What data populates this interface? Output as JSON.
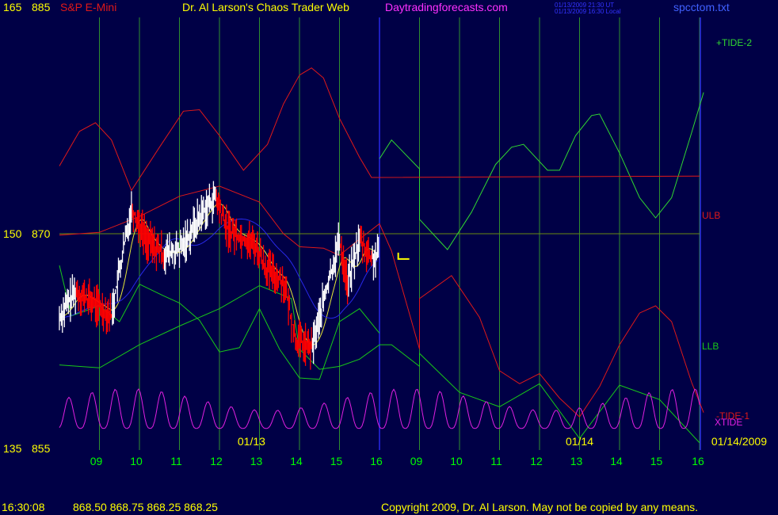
{
  "header": {
    "price_scale_top_a": "165",
    "price_scale_top_b": "885",
    "symbol": "S&P E-Mini",
    "title": "Dr. Al Larson's Chaos Trader Web",
    "site": "Daytradingforecasts.com",
    "stamp_ut": "01/13/2009 21:30 UT",
    "stamp_local": "01/13/2009 16:30 Local",
    "file": "spcctom.txt"
  },
  "footer": {
    "time": "16:30:08",
    "quote": "868.50 868.75 868.25 868.25",
    "copyright": "Copyright 2009, Dr. Al Larson. May not be copied by any means."
  },
  "colors": {
    "background": "#000046",
    "grid": "#2f8f2f",
    "price_up": "#ffffff",
    "price_down": "#ff0000",
    "ulb": "#e01818",
    "llb": "#18c818",
    "tide": "#30d830",
    "xtide": "#e020e0",
    "avg_blue": "#2828e8",
    "avg_yellow": "#e8e838",
    "label_yellow": "#ffff00",
    "label_green": "#00ff00"
  },
  "chart_data": {
    "type": "line",
    "title": "S&P E-Mini",
    "y_axis": {
      "price_range": [
        855,
        885
      ],
      "ticks": [
        {
          "left": "165",
          "right": "885",
          "value": 885
        },
        {
          "left": "150",
          "right": "870",
          "value": 870
        },
        {
          "left": "135",
          "right": "855",
          "value": 855
        }
      ],
      "reference_line": 870
    },
    "x_axis": {
      "unit": "hour",
      "hours": [
        8,
        17
      ],
      "days": [
        {
          "date": "01/13",
          "ticks": [
            "09",
            "10",
            "11",
            "12",
            "13",
            "14",
            "15",
            "16"
          ]
        },
        {
          "date": "01/14",
          "ticks": [
            "09",
            "10",
            "11",
            "12",
            "13",
            "14",
            "15",
            "16"
          ]
        }
      ],
      "end_label": "01/14/2009"
    },
    "day_separator": {
      "day": 1,
      "hour": 16
    },
    "series_labels": [
      "+TIDE-2",
      "ULB",
      "LLB",
      "-TIDE-1",
      "XTIDE"
    ],
    "series": [
      {
        "name": "+TIDE-2",
        "points": [
          [
            1,
            16,
            875.2
          ],
          [
            1,
            16.3,
            876.5
          ],
          [
            1,
            17,
            874.5
          ],
          [
            2,
            9,
            871
          ],
          [
            2,
            9.7,
            868.9
          ],
          [
            2,
            10.3,
            871.5
          ],
          [
            2,
            10.9,
            874.8
          ],
          [
            2,
            11.3,
            876
          ],
          [
            2,
            11.6,
            876.2
          ],
          [
            2,
            12.2,
            874.4
          ],
          [
            2,
            12.5,
            874.4
          ],
          [
            2,
            12.9,
            876.8
          ],
          [
            2,
            13.3,
            878.2
          ],
          [
            2,
            13.5,
            878.3
          ],
          [
            2,
            14,
            875.6
          ],
          [
            2,
            14.5,
            872.5
          ],
          [
            2,
            14.9,
            871.1
          ],
          [
            2,
            15.3,
            872.5
          ],
          [
            2,
            15.8,
            877
          ],
          [
            2,
            16.1,
            879.8
          ]
        ]
      },
      {
        "name": "ULB",
        "points": [
          [
            1,
            8,
            874.7
          ],
          [
            1,
            8.5,
            877.1
          ],
          [
            1,
            8.9,
            877.7
          ],
          [
            1,
            9.3,
            876.5
          ],
          [
            1,
            9.8,
            873
          ],
          [
            1,
            10.5,
            876
          ],
          [
            1,
            11.1,
            878.5
          ],
          [
            1,
            11.5,
            878.6
          ],
          [
            1,
            12,
            876.8
          ],
          [
            1,
            12.6,
            874.4
          ],
          [
            1,
            13.2,
            876.2
          ],
          [
            1,
            13.6,
            879
          ],
          [
            1,
            14,
            881
          ],
          [
            1,
            14.3,
            881.5
          ],
          [
            1,
            14.6,
            880.8
          ],
          [
            1,
            15,
            878
          ],
          [
            1,
            15.5,
            875.3
          ],
          [
            1,
            15.8,
            873.9
          ],
          [
            2,
            16,
            874
          ]
        ]
      },
      {
        "name": "ULB2",
        "points": [
          [
            1,
            8,
            869.9
          ],
          [
            1,
            9,
            870.1
          ],
          [
            1,
            10,
            871.2
          ],
          [
            1,
            11,
            872.6
          ],
          [
            1,
            12,
            873.3
          ],
          [
            1,
            13,
            872.2
          ],
          [
            1,
            13.6,
            870
          ],
          [
            1,
            14,
            869.1
          ],
          [
            1,
            14.6,
            869
          ],
          [
            1,
            15,
            868.5
          ],
          [
            1,
            15.4,
            869.4
          ],
          [
            1,
            16,
            870.7
          ],
          [
            1,
            16.3,
            868.8
          ],
          [
            1,
            17,
            862
          ],
          [
            2,
            9,
            865.5
          ],
          [
            2,
            9.8,
            867.1
          ],
          [
            2,
            10.5,
            864.2
          ],
          [
            2,
            11,
            860.5
          ],
          [
            2,
            11.5,
            859.6
          ],
          [
            2,
            12,
            860.3
          ],
          [
            2,
            12.5,
            858.6
          ],
          [
            2,
            13,
            857.3
          ],
          [
            2,
            13.5,
            859.4
          ],
          [
            2,
            14,
            862.3
          ],
          [
            2,
            14.5,
            864.5
          ],
          [
            2,
            14.9,
            865
          ],
          [
            2,
            15.3,
            863.9
          ],
          [
            2,
            15.8,
            859.7
          ],
          [
            2,
            16.1,
            857.6
          ]
        ]
      },
      {
        "name": "LLB",
        "points": [
          [
            1,
            8,
            860.9
          ],
          [
            1,
            9,
            860.7
          ],
          [
            1,
            10,
            862.3
          ],
          [
            1,
            11,
            863.6
          ],
          [
            1,
            12,
            864.8
          ],
          [
            1,
            13,
            866.4
          ],
          [
            1,
            13.8,
            865.5
          ],
          [
            1,
            14,
            862
          ],
          [
            1,
            14.5,
            860.6
          ],
          [
            1,
            15,
            860.8
          ],
          [
            1,
            15.5,
            861.3
          ],
          [
            1,
            16,
            862.3
          ],
          [
            1,
            16.3,
            862.3
          ],
          [
            1,
            17,
            860.8
          ],
          [
            2,
            9,
            861.7
          ],
          [
            2,
            10,
            859
          ],
          [
            2,
            11,
            858
          ],
          [
            2,
            12,
            859.6
          ],
          [
            2,
            13,
            855.8
          ],
          [
            2,
            14,
            859.5
          ],
          [
            2,
            15,
            858.5
          ],
          [
            2,
            16,
            855.5
          ]
        ]
      },
      {
        "name": "LLB2",
        "points": [
          [
            1,
            8,
            867.8
          ],
          [
            1,
            8.3,
            864.3
          ],
          [
            1,
            9,
            865
          ],
          [
            1,
            9.5,
            863.9
          ],
          [
            1,
            10,
            866.5
          ],
          [
            1,
            10.6,
            865.7
          ],
          [
            1,
            11,
            865.2
          ],
          [
            1,
            11.5,
            864
          ],
          [
            1,
            12,
            861.8
          ],
          [
            1,
            12.5,
            862.1
          ],
          [
            1,
            13,
            864.8
          ],
          [
            1,
            13.5,
            862
          ],
          [
            1,
            14,
            860
          ],
          [
            1,
            14.5,
            859.9
          ],
          [
            1,
            15,
            863.9
          ],
          [
            1,
            15.5,
            864.8
          ],
          [
            1,
            16,
            863.1
          ]
        ]
      },
      {
        "name": "XTIDE",
        "phase": 0.3,
        "amp": 2.5,
        "base": 856.5,
        "period_h": 0.58,
        "range": [
          [
            1,
            8
          ],
          [
            2,
            16
          ]
        ]
      }
    ],
    "price_bars": {
      "series": "S&P E-Mini",
      "range": [
        [
          1,
          8
        ],
        [
          1,
          16
        ]
      ],
      "anchors": [
        [
          1,
          8,
          864.2
        ],
        [
          1,
          8.4,
          866
        ],
        [
          1,
          8.9,
          865.1
        ],
        [
          1,
          9.3,
          864.4
        ],
        [
          1,
          9.8,
          871.8
        ],
        [
          1,
          10.2,
          869.5
        ],
        [
          1,
          10.6,
          868.6
        ],
        [
          1,
          11,
          868.8
        ],
        [
          1,
          11.3,
          870.2
        ],
        [
          1,
          11.6,
          871.6
        ],
        [
          1,
          11.9,
          872.5
        ],
        [
          1,
          12.2,
          870.3
        ],
        [
          1,
          12.6,
          869.7
        ],
        [
          1,
          12.9,
          869.2
        ],
        [
          1,
          13.2,
          867.5
        ],
        [
          1,
          13.6,
          866.7
        ],
        [
          1,
          13.9,
          862.7
        ],
        [
          1,
          14.3,
          862
        ],
        [
          1,
          14.6,
          865.3
        ],
        [
          1,
          15,
          869.6
        ],
        [
          1,
          15.2,
          866.5
        ],
        [
          1,
          15.5,
          869.6
        ],
        [
          1,
          15.8,
          868.2
        ],
        [
          1,
          16,
          868.5
        ]
      ]
    },
    "last_price_marker": {
      "day": 1,
      "hour": 16.35,
      "value": 868.25
    }
  }
}
